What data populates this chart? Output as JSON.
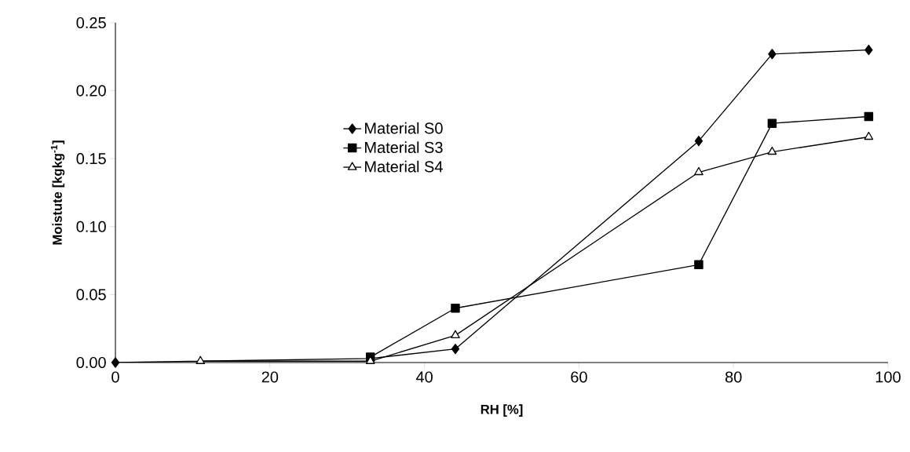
{
  "chart_data": {
    "type": "line",
    "xlabel": "RH [%]",
    "ylabel": "Moistute [kgkg$^{-1}$]",
    "series": [
      {
        "name": "Material S0",
        "color": "#000000",
        "marker": "diamond",
        "x": [
          0,
          11,
          33,
          44,
          75.5,
          85,
          97.5
        ],
        "values": [
          0,
          null,
          0.003,
          0.01,
          0.163,
          0.227,
          0.23
        ]
      },
      {
        "name": "Material S3",
        "color": "#000000",
        "marker": "square",
        "x": [
          33,
          44,
          75.5,
          85,
          97.5
        ],
        "values": [
          0.004,
          0.04,
          0.072,
          0.176,
          0.181
        ]
      },
      {
        "name": "Material S4",
        "color": "#000000",
        "marker": "triangle",
        "x": [
          11,
          33,
          44,
          75.5,
          85,
          97.5
        ],
        "values": [
          0.001,
          0.001,
          0.02,
          0.14,
          0.155,
          0.166
        ]
      }
    ],
    "xlim": [
      0,
      100
    ],
    "xticks": [
      0,
      20,
      40,
      60,
      80,
      100
    ],
    "ylim": [
      0,
      0.25
    ],
    "yticks": [
      {
        "value": 0,
        "label": "0.00"
      },
      {
        "value": 0.05,
        "label": "0.05"
      },
      {
        "value": 0.1,
        "label": "0.10"
      },
      {
        "value": 0.15,
        "label": "0.15"
      },
      {
        "value": 0.2,
        "label": "0.20"
      },
      {
        "value": 0.25,
        "label": "0.25"
      }
    ],
    "grid": false,
    "legend": "top",
    "line_style": "solid"
  }
}
